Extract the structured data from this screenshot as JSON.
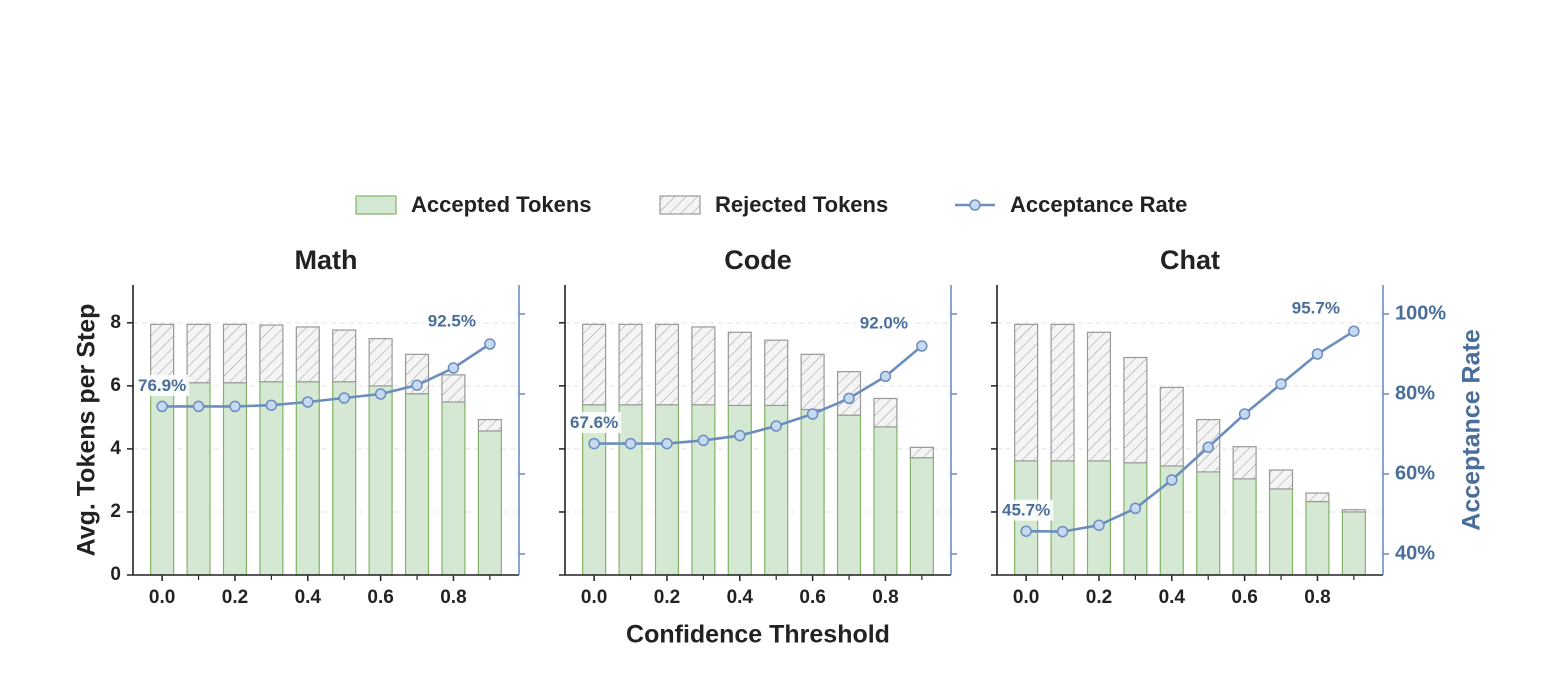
{
  "chart_data": [
    {
      "type": "bar",
      "title": "Math",
      "ylabel": "Avg. Tokens per Step",
      "x": [
        0,
        0.1,
        0.2,
        0.3,
        0.4,
        0.5,
        0.6,
        0.7,
        0.8,
        0.9
      ],
      "xlim": [
        -0.08,
        0.98
      ],
      "xticks": [
        {
          "value": 0,
          "label": "0.0"
        },
        {
          "value": 0.2,
          "label": "0.2"
        },
        {
          "value": 0.4,
          "label": "0.4"
        },
        {
          "value": 0.6,
          "label": "0.6"
        },
        {
          "value": 0.8,
          "label": "0.8"
        }
      ],
      "xminorticks": [
        0.1,
        0.3,
        0.5,
        0.7,
        0.9
      ],
      "ylim": [
        0,
        9.2
      ],
      "yticks": [
        0,
        2,
        4,
        6,
        8
      ],
      "ytick_labels": true,
      "y2lim": [
        34.75,
        107.25
      ],
      "y2ticks": [
        40,
        60,
        80,
        100
      ],
      "y2tick_labels": false,
      "grid": true,
      "series": [
        {
          "name": "Accepted Tokens",
          "color": "#d5e8d4",
          "edgecolor": "#82b366",
          "values": [
            6.1,
            6.1,
            6.1,
            6.13,
            6.13,
            6.13,
            6.0,
            5.75,
            5.49,
            4.57
          ]
        },
        {
          "name": "Rejected Tokens",
          "color": "#999999",
          "hatch": true,
          "values": [
            1.85,
            1.85,
            1.85,
            1.8,
            1.74,
            1.64,
            1.5,
            1.25,
            0.86,
            0.36
          ]
        },
        {
          "name": "Acceptance Rate",
          "type": "line",
          "axis": "y2",
          "color": "#6c8ebf",
          "values": [
            76.9,
            76.9,
            76.9,
            77.2,
            78.0,
            79.0,
            80.0,
            82.2,
            86.5,
            92.5
          ],
          "value_labels": [
            "76.9%",
            null,
            null,
            null,
            null,
            null,
            null,
            null,
            null,
            "92.5%"
          ]
        }
      ]
    },
    {
      "type": "bar",
      "title": "Code",
      "xlabel": "Confidence Threshold",
      "x": [
        0,
        0.1,
        0.2,
        0.3,
        0.4,
        0.5,
        0.6,
        0.7,
        0.8,
        0.9
      ],
      "xlim": [
        -0.08,
        0.98
      ],
      "xticks": [
        {
          "value": 0,
          "label": "0.0"
        },
        {
          "value": 0.2,
          "label": "0.2"
        },
        {
          "value": 0.4,
          "label": "0.4"
        },
        {
          "value": 0.6,
          "label": "0.6"
        },
        {
          "value": 0.8,
          "label": "0.8"
        }
      ],
      "xminorticks": [
        0.1,
        0.3,
        0.5,
        0.7,
        0.9
      ],
      "ylim": [
        0,
        9.2
      ],
      "yticks": [
        0,
        2,
        4,
        6,
        8
      ],
      "ytick_labels": false,
      "y2lim": [
        34.75,
        107.25
      ],
      "y2ticks": [
        40,
        60,
        80,
        100
      ],
      "y2tick_labels": false,
      "grid": true,
      "series": [
        {
          "color": "#d5e8d4",
          "edgecolor": "#82b366",
          "values": [
            5.4,
            5.4,
            5.4,
            5.4,
            5.38,
            5.38,
            5.25,
            5.07,
            4.7,
            3.72
          ]
        },
        {
          "color": "#999999",
          "hatch": true,
          "values": [
            2.55,
            2.55,
            2.55,
            2.47,
            2.32,
            2.07,
            1.75,
            1.38,
            0.9,
            0.33
          ]
        },
        {
          "type": "line",
          "axis": "y2",
          "color": "#6c8ebf",
          "values": [
            67.6,
            67.6,
            67.6,
            68.4,
            69.6,
            72.0,
            75.0,
            78.9,
            84.4,
            92.0
          ],
          "value_labels": [
            "67.6%",
            null,
            null,
            null,
            null,
            null,
            null,
            null,
            null,
            "92.0%"
          ]
        }
      ]
    },
    {
      "type": "bar",
      "title": "Chat",
      "y2label": "Acceptance Rate",
      "x": [
        0,
        0.1,
        0.2,
        0.3,
        0.4,
        0.5,
        0.6,
        0.7,
        0.8,
        0.9
      ],
      "xlim": [
        -0.08,
        0.98
      ],
      "xticks": [
        {
          "value": 0,
          "label": "0.0"
        },
        {
          "value": 0.2,
          "label": "0.2"
        },
        {
          "value": 0.4,
          "label": "0.4"
        },
        {
          "value": 0.6,
          "label": "0.6"
        },
        {
          "value": 0.8,
          "label": "0.8"
        }
      ],
      "xminorticks": [
        0.1,
        0.3,
        0.5,
        0.7,
        0.9
      ],
      "ylim": [
        0,
        9.2
      ],
      "yticks": [
        0,
        2,
        4,
        6,
        8
      ],
      "ytick_labels": false,
      "y2lim": [
        34.75,
        107.25
      ],
      "y2ticks": [
        {
          "value": 40,
          "label": "40%"
        },
        {
          "value": 60,
          "label": "60%"
        },
        {
          "value": 80,
          "label": "80%"
        },
        {
          "value": 100,
          "label": "100%"
        }
      ],
      "y2tick_labels": true,
      "grid": true,
      "series": [
        {
          "color": "#d5e8d4",
          "edgecolor": "#82b366",
          "values": [
            3.62,
            3.62,
            3.62,
            3.56,
            3.46,
            3.27,
            3.05,
            2.73,
            2.33,
            2.0
          ]
        },
        {
          "color": "#999999",
          "hatch": true,
          "values": [
            4.33,
            4.33,
            4.08,
            3.34,
            2.49,
            1.66,
            1.02,
            0.6,
            0.27,
            0.07
          ]
        },
        {
          "type": "line",
          "axis": "y2",
          "color": "#6c8ebf",
          "values": [
            45.7,
            45.6,
            47.2,
            51.4,
            58.5,
            66.7,
            75.0,
            82.5,
            90.0,
            95.7
          ],
          "value_labels": [
            "45.7%",
            null,
            null,
            null,
            null,
            null,
            null,
            null,
            null,
            "95.7%"
          ]
        }
      ]
    }
  ]
}
